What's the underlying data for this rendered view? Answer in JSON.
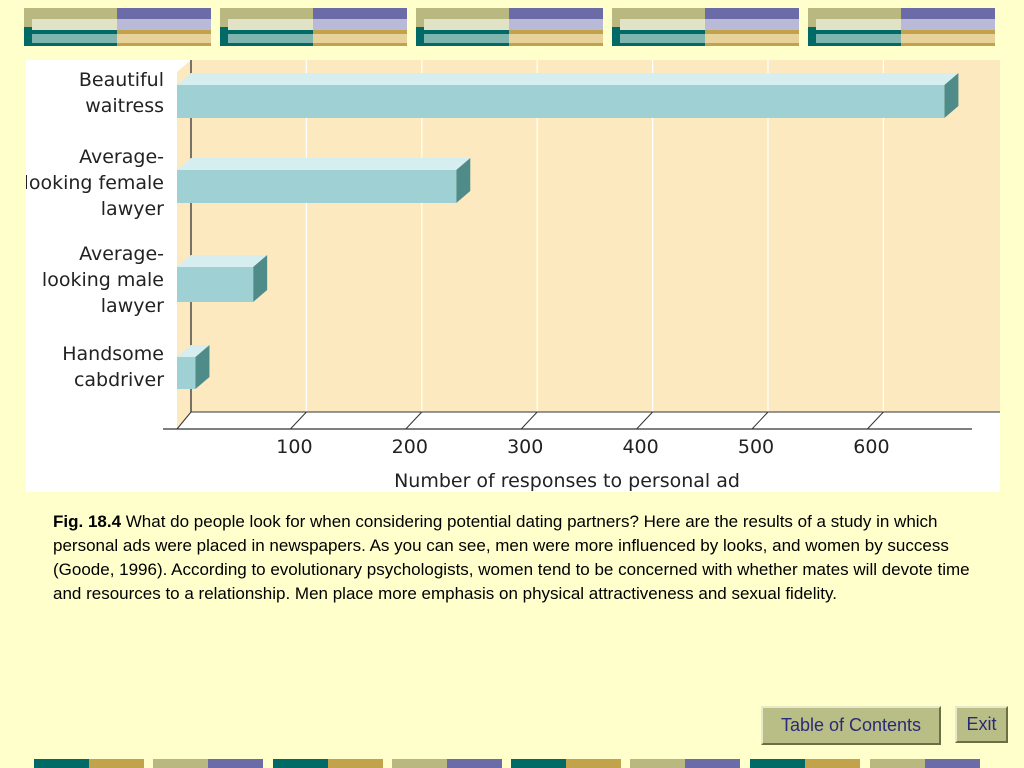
{
  "caption": {
    "fig_label": "Fig. 18.4",
    "text": " What do people look for when considering potential dating partners? Here are the results of a study in which personal ads were placed in newspapers. As you can see, men were more influenced by looks, and women by success (Goode, 1996). According to evolutionary psychologists, women tend to be concerned with whether mates will devote time and resources to a relationship. Men place more emphasis on physical attractiveness and sexual fidelity."
  },
  "nav": {
    "toc_label": "Table of Contents",
    "exit_label": "Exit"
  },
  "colors": {
    "background": "#ffffcc",
    "plot_background": "#fde9bf",
    "bar_front": "#9ed0d4",
    "bar_top": "#d7eef0",
    "bar_side": "#4f8c89",
    "accent_teal": "#006a66",
    "accent_gold": "#c3a24c",
    "accent_purple": "#6b6ba8",
    "accent_olive": "#b8b880"
  },
  "chart_data": {
    "type": "bar",
    "orientation": "horizontal",
    "categories": [
      [
        "Beautiful",
        "waitress"
      ],
      [
        "Average-",
        "looking female",
        "lawyer"
      ],
      [
        "Average-",
        "looking male",
        "lawyer"
      ],
      [
        "Handsome",
        "cabdriver"
      ]
    ],
    "values": [
      665,
      242,
      66,
      16
    ],
    "xlabel": "Number of responses to personal ad",
    "xticks": [
      100,
      200,
      300,
      400,
      500,
      600
    ],
    "xlim": [
      0,
      700
    ],
    "grid": true
  }
}
